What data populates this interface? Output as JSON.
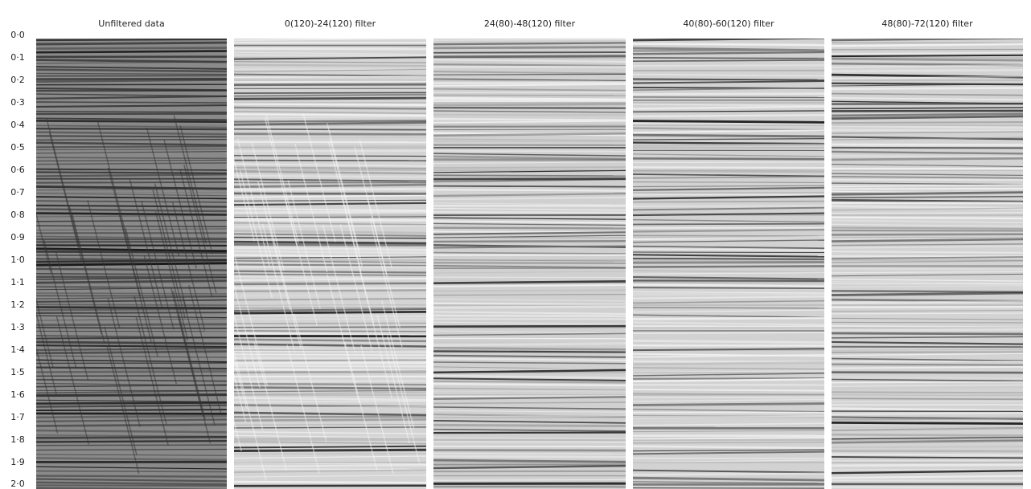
{
  "figure": {
    "panels": [
      {
        "title": "Unfiltered data"
      },
      {
        "title": "0(120)-24(120) filter"
      },
      {
        "title": "24(80)-48(120) filter"
      },
      {
        "title": "40(80)-60(120) filter"
      },
      {
        "title": "48(80)-72(120) filter"
      }
    ],
    "time_labels": [
      "0·0",
      "0·1",
      "0·2",
      "0·3",
      "0·4",
      "0·5",
      "0·6",
      "0·7",
      "0·8",
      "0·9",
      "1·0",
      "1·1",
      "1·2",
      "1·3",
      "1·4",
      "1·5",
      "1·6",
      "1·7",
      "1·8",
      "1·9",
      "2·0"
    ]
  }
}
